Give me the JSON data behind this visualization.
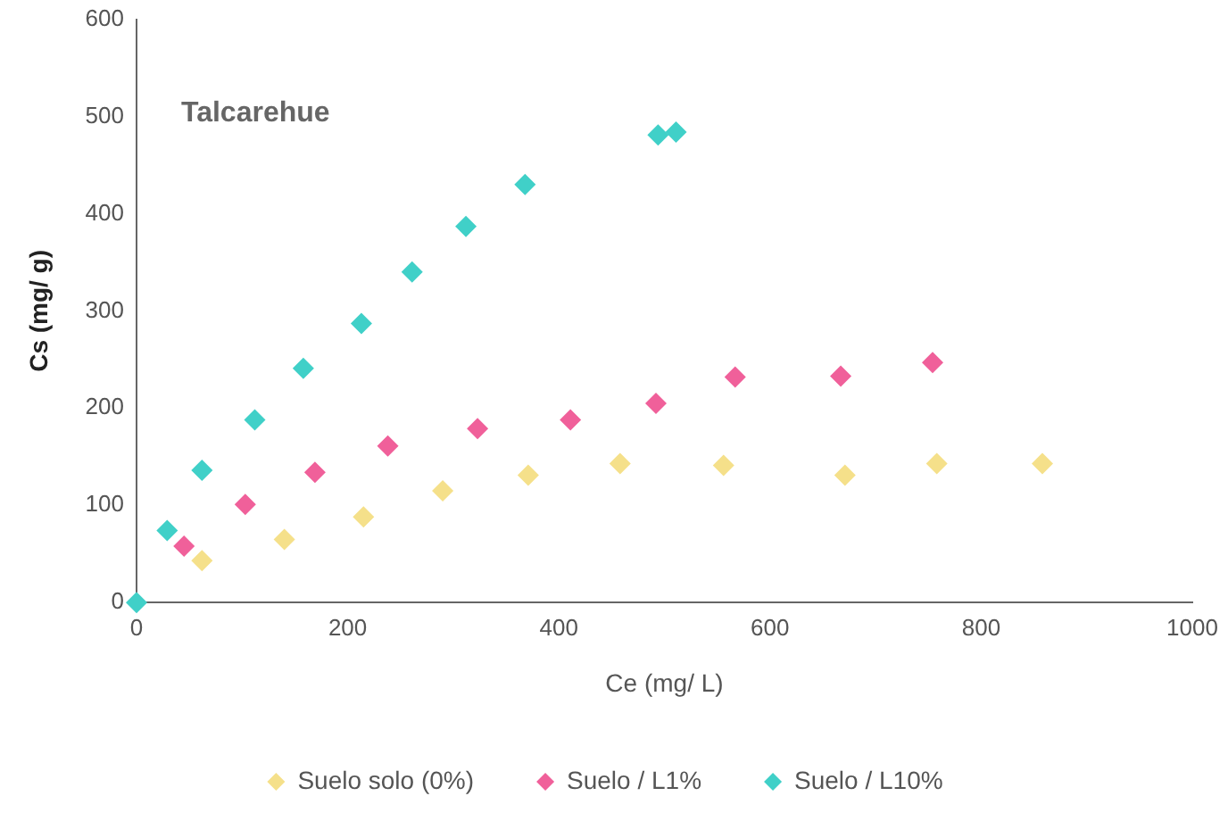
{
  "chart_data": {
    "type": "scatter",
    "xlabel": "Ce (mg/ L)",
    "ylabel": "Cs (mg/ g)",
    "annotations": [
      "Talcarehue"
    ],
    "xlim": [
      0,
      1000
    ],
    "xticks": [
      0,
      200,
      400,
      600,
      800,
      1000
    ],
    "ylim": [
      0,
      600
    ],
    "yticks": [
      0,
      100,
      200,
      300,
      400,
      500,
      600
    ],
    "grid": false,
    "legend": "bottom",
    "marker": "diamond",
    "series": [
      {
        "name": "Suelo solo (0%)",
        "color": "#f5e08a",
        "x": [
          62,
          140,
          215,
          290,
          371,
          458,
          556,
          671,
          758,
          858
        ],
        "values": [
          43,
          65,
          88,
          115,
          131,
          143,
          141,
          131,
          143,
          143
        ]
      },
      {
        "name": "Suelo / L1%",
        "color": "#f0609a",
        "x": [
          45,
          103,
          169,
          238,
          323,
          411,
          492,
          567,
          667,
          754
        ],
        "values": [
          58,
          101,
          134,
          161,
          179,
          188,
          205,
          232,
          233,
          247
        ]
      },
      {
        "name": "Suelo / L10%",
        "color": "#40d0c8",
        "x": [
          0,
          29,
          62,
          112,
          158,
          213,
          261,
          312,
          368,
          494,
          511
        ],
        "values": [
          0,
          74,
          136,
          188,
          241,
          287,
          340,
          387,
          430,
          481,
          484
        ]
      }
    ]
  }
}
